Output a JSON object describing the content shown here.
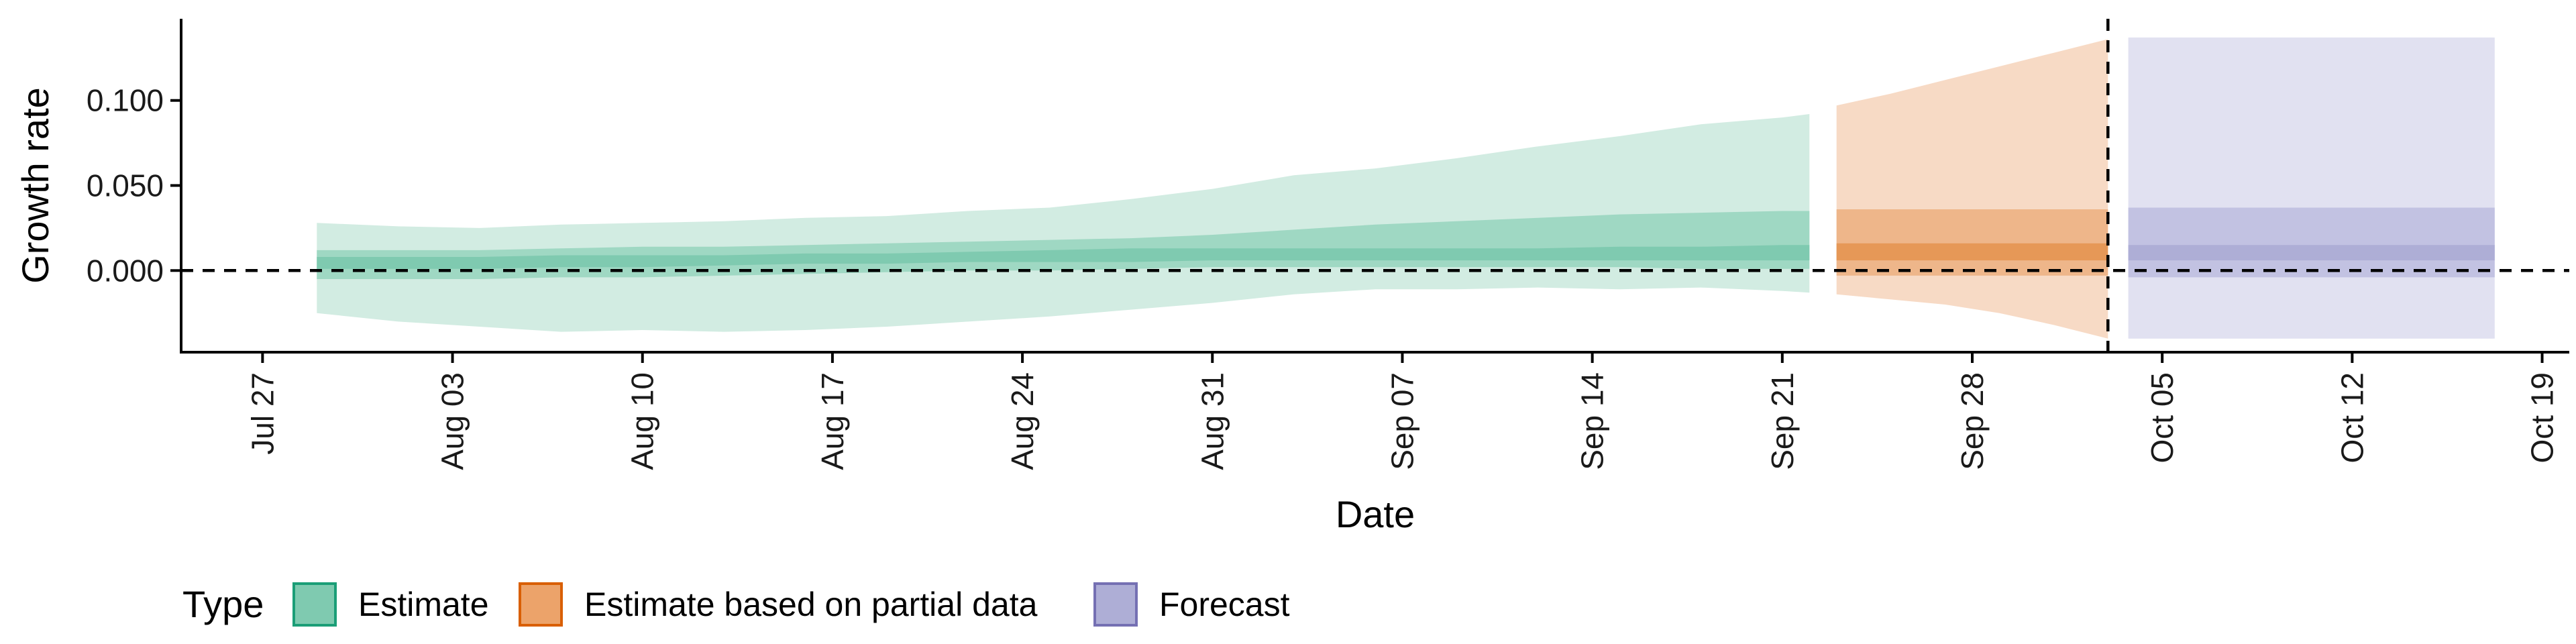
{
  "chart_data": {
    "type": "area",
    "xlabel": "Date",
    "ylabel": "Growth rate",
    "ylim": [
      -0.048,
      0.148
    ],
    "xlim": [
      "2020-07-24",
      "2020-10-20"
    ],
    "y_ticks": [
      0.0,
      0.05,
      0.1
    ],
    "y_tick_labels": [
      "0.000",
      "0.050",
      "0.100"
    ],
    "x_ticks": [
      "2020-07-27",
      "2020-08-03",
      "2020-08-10",
      "2020-08-17",
      "2020-08-24",
      "2020-08-31",
      "2020-09-07",
      "2020-09-14",
      "2020-09-21",
      "2020-09-28",
      "2020-10-05",
      "2020-10-12",
      "2020-10-19"
    ],
    "x_tick_labels": [
      "Jul 27",
      "Aug 03",
      "Aug 10",
      "Aug 17",
      "Aug 24",
      "Aug 31",
      "Sep 07",
      "Sep 14",
      "Sep 21",
      "Sep 28",
      "Oct 05",
      "Oct 12",
      "Oct 19"
    ],
    "hlines": [
      0.0
    ],
    "vlines": [
      "2020-10-03"
    ],
    "legend": {
      "title": "Type",
      "position": "bottom",
      "items": [
        {
          "label": "Estimate",
          "fill": "#7fcab0",
          "stroke": "#1b9e77"
        },
        {
          "label": "Estimate based on partial data",
          "fill": "#eca36a",
          "stroke": "#d95f02"
        },
        {
          "label": "Forecast",
          "fill": "#aeaed6",
          "stroke": "#7570b3"
        }
      ]
    },
    "series": [
      {
        "name": "Estimate",
        "color": "#1b9e77",
        "x": [
          "2020-07-29",
          "2020-08-01",
          "2020-08-04",
          "2020-08-07",
          "2020-08-10",
          "2020-08-13",
          "2020-08-16",
          "2020-08-19",
          "2020-08-22",
          "2020-08-25",
          "2020-08-28",
          "2020-08-31",
          "2020-09-03",
          "2020-09-06",
          "2020-09-09",
          "2020-09-12",
          "2020-09-15",
          "2020-09-18",
          "2020-09-21",
          "2020-09-22"
        ],
        "outer_lower": [
          -0.025,
          -0.03,
          -0.033,
          -0.036,
          -0.035,
          -0.036,
          -0.035,
          -0.033,
          -0.03,
          -0.027,
          -0.023,
          -0.019,
          -0.014,
          -0.011,
          -0.011,
          -0.01,
          -0.011,
          -0.01,
          -0.012,
          -0.013
        ],
        "outer_upper": [
          0.028,
          0.026,
          0.025,
          0.027,
          0.028,
          0.029,
          0.031,
          0.032,
          0.035,
          0.037,
          0.042,
          0.048,
          0.056,
          0.06,
          0.066,
          0.073,
          0.079,
          0.086,
          0.09,
          0.092
        ],
        "mid_lower": [
          -0.005,
          -0.005,
          -0.005,
          -0.004,
          -0.004,
          -0.003,
          -0.002,
          -0.001,
          0.0,
          0.0,
          0.001,
          0.002,
          0.002,
          0.002,
          0.002,
          0.002,
          0.002,
          0.001,
          0.001,
          0.001
        ],
        "mid_upper": [
          0.012,
          0.012,
          0.012,
          0.013,
          0.014,
          0.014,
          0.015,
          0.016,
          0.017,
          0.018,
          0.019,
          0.021,
          0.024,
          0.027,
          0.029,
          0.031,
          0.033,
          0.034,
          0.035,
          0.035
        ],
        "inner_lower": [
          0.001,
          0.001,
          0.001,
          0.002,
          0.002,
          0.003,
          0.004,
          0.004,
          0.005,
          0.005,
          0.005,
          0.006,
          0.006,
          0.006,
          0.006,
          0.006,
          0.006,
          0.006,
          0.006,
          0.006
        ],
        "inner_upper": [
          0.008,
          0.008,
          0.008,
          0.009,
          0.009,
          0.009,
          0.01,
          0.01,
          0.011,
          0.012,
          0.013,
          0.013,
          0.013,
          0.013,
          0.013,
          0.013,
          0.014,
          0.014,
          0.015,
          0.015
        ]
      },
      {
        "name": "Estimate based on partial data",
        "color": "#d95f02",
        "x": [
          "2020-09-23",
          "2020-09-25",
          "2020-09-27",
          "2020-09-29",
          "2020-10-01",
          "2020-10-03"
        ],
        "outer_lower": [
          -0.014,
          -0.017,
          -0.02,
          -0.025,
          -0.032,
          -0.04
        ],
        "outer_upper": [
          0.097,
          0.104,
          0.112,
          0.12,
          0.128,
          0.136
        ],
        "mid_lower": [
          -0.003,
          -0.003,
          -0.003,
          -0.003,
          -0.003,
          -0.003
        ],
        "mid_upper": [
          0.036,
          0.036,
          0.036,
          0.036,
          0.036,
          0.036
        ],
        "inner_lower": [
          0.006,
          0.006,
          0.006,
          0.006,
          0.006,
          0.006
        ],
        "inner_upper": [
          0.016,
          0.016,
          0.016,
          0.016,
          0.016,
          0.016
        ]
      },
      {
        "name": "Forecast",
        "color": "#7570b3",
        "x": [
          "2020-10-04",
          "2020-10-17"
        ],
        "outer_lower": [
          -0.04,
          -0.04
        ],
        "outer_upper": [
          0.137,
          0.137
        ],
        "mid_lower": [
          -0.004,
          -0.004
        ],
        "mid_upper": [
          0.037,
          0.037
        ],
        "inner_lower": [
          0.006,
          0.006
        ],
        "inner_upper": [
          0.015,
          0.015
        ]
      }
    ]
  }
}
